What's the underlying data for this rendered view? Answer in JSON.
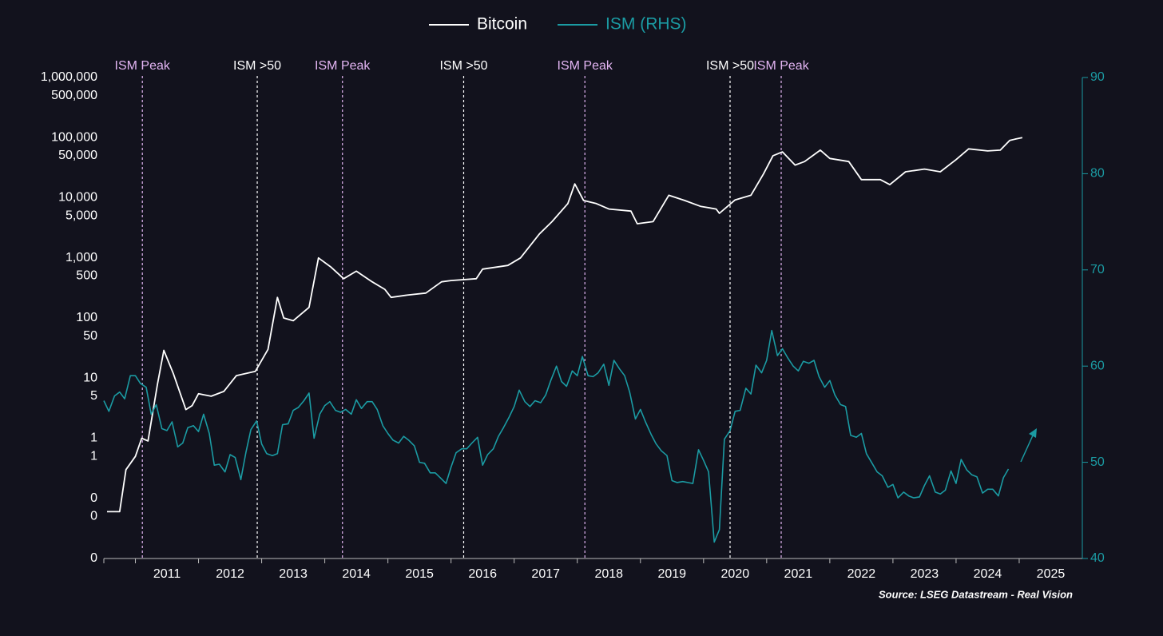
{
  "chart_data": {
    "type": "line",
    "source": "Source: LSEG Datastream - Real Vision",
    "xlim": [
      2010.5,
      2026
    ],
    "xticks": [
      2011,
      2012,
      2013,
      2014,
      2015,
      2016,
      2017,
      2018,
      2019,
      2020,
      2021,
      2022,
      2023,
      2024,
      2025
    ],
    "ylim": [
      0.01,
      1000000
    ],
    "ylog": true,
    "yticks": [
      {
        "value": 1000000,
        "label": "1,000,000"
      },
      {
        "value": 500000,
        "label": "500,000"
      },
      {
        "value": 100000,
        "label": "100,000"
      },
      {
        "value": 50000,
        "label": "50,000"
      },
      {
        "value": 10000,
        "label": "10,000"
      },
      {
        "value": 5000,
        "label": "5,000"
      },
      {
        "value": 1000,
        "label": "1,000"
      },
      500,
      100,
      50,
      10,
      5,
      1,
      {
        "value": 0.5,
        "label": "1"
      },
      {
        "value": 0.1,
        "label": "0"
      },
      {
        "value": 0.05,
        "label": "0"
      },
      {
        "value": 0.01,
        "label": "0"
      }
    ],
    "y2lim": [
      40,
      90
    ],
    "y2ticks": [
      40,
      50,
      60,
      70,
      80,
      90
    ],
    "grid": false,
    "legend": "top",
    "series": [
      {
        "name": "Bitcoin",
        "color": "#ffffff",
        "x": [
          2010.55,
          2010.75,
          2010.85,
          2011.0,
          2011.1,
          2011.2,
          2011.35,
          2011.45,
          2011.6,
          2011.8,
          2011.9,
          2012.0,
          2012.2,
          2012.4,
          2012.6,
          2012.9,
          2013.1,
          2013.25,
          2013.35,
          2013.5,
          2013.75,
          2013.9,
          2014.1,
          2014.3,
          2014.5,
          2014.75,
          2014.95,
          2015.05,
          2015.3,
          2015.6,
          2015.85,
          2016.0,
          2016.4,
          2016.5,
          2016.9,
          2017.1,
          2017.4,
          2017.6,
          2017.85,
          2017.96,
          2018.1,
          2018.3,
          2018.5,
          2018.85,
          2018.95,
          2019.2,
          2019.45,
          2019.7,
          2019.95,
          2020.2,
          2020.25,
          2020.5,
          2020.75,
          2020.95,
          2021.1,
          2021.25,
          2021.45,
          2021.6,
          2021.85,
          2022.0,
          2022.3,
          2022.5,
          2022.8,
          2022.95,
          2023.2,
          2023.5,
          2023.75,
          2024.0,
          2024.2,
          2024.5,
          2024.7,
          2024.85,
          2024.95,
          2025.05
        ],
        "values": [
          0.06,
          0.06,
          0.3,
          0.5,
          1.0,
          0.9,
          8,
          29,
          12,
          3,
          3.5,
          5.5,
          5,
          6,
          11,
          13,
          30,
          220,
          100,
          90,
          150,
          1000,
          700,
          450,
          600,
          400,
          300,
          220,
          240,
          260,
          400,
          420,
          450,
          650,
          750,
          1000,
          2500,
          4000,
          8000,
          17000,
          9000,
          8000,
          6500,
          6000,
          3700,
          4000,
          11000,
          9000,
          7200,
          6500,
          5500,
          9200,
          11000,
          25000,
          50000,
          58000,
          35000,
          40000,
          62000,
          45000,
          40000,
          20000,
          20000,
          16500,
          27000,
          30000,
          27000,
          43000,
          65000,
          60000,
          62000,
          90000,
          95000,
          100000
        ]
      },
      {
        "name": "ISM (RHS)",
        "color": "#1b9ba3",
        "axis": "y2",
        "x": [
          2010.5,
          2010.58,
          2010.67,
          2010.75,
          2010.83,
          2010.92,
          2011.0,
          2011.08,
          2011.17,
          2011.25,
          2011.33,
          2011.42,
          2011.5,
          2011.58,
          2011.67,
          2011.75,
          2011.83,
          2011.92,
          2012.0,
          2012.08,
          2012.17,
          2012.25,
          2012.33,
          2012.42,
          2012.5,
          2012.58,
          2012.67,
          2012.75,
          2012.83,
          2012.92,
          2013.0,
          2013.08,
          2013.17,
          2013.25,
          2013.33,
          2013.42,
          2013.5,
          2013.58,
          2013.67,
          2013.75,
          2013.83,
          2013.92,
          2014.0,
          2014.08,
          2014.17,
          2014.25,
          2014.33,
          2014.42,
          2014.5,
          2014.58,
          2014.67,
          2014.75,
          2014.83,
          2014.92,
          2015.0,
          2015.08,
          2015.17,
          2015.25,
          2015.33,
          2015.42,
          2015.5,
          2015.58,
          2015.67,
          2015.75,
          2015.83,
          2015.92,
          2016.0,
          2016.08,
          2016.17,
          2016.25,
          2016.33,
          2016.42,
          2016.5,
          2016.58,
          2016.67,
          2016.75,
          2016.83,
          2016.92,
          2017.0,
          2017.08,
          2017.17,
          2017.25,
          2017.33,
          2017.42,
          2017.5,
          2017.58,
          2017.67,
          2017.75,
          2017.83,
          2017.92,
          2018.0,
          2018.08,
          2018.17,
          2018.25,
          2018.33,
          2018.42,
          2018.5,
          2018.58,
          2018.67,
          2018.75,
          2018.83,
          2018.92,
          2019.0,
          2019.08,
          2019.17,
          2019.25,
          2019.33,
          2019.42,
          2019.5,
          2019.58,
          2019.67,
          2019.75,
          2019.83,
          2019.92,
          2020.0,
          2020.08,
          2020.17,
          2020.25,
          2020.33,
          2020.42,
          2020.5,
          2020.58,
          2020.67,
          2020.75,
          2020.83,
          2020.92,
          2021.0,
          2021.08,
          2021.17,
          2021.25,
          2021.33,
          2021.42,
          2021.5,
          2021.58,
          2021.67,
          2021.75,
          2021.83,
          2021.92,
          2022.0,
          2022.08,
          2022.17,
          2022.25,
          2022.33,
          2022.42,
          2022.5,
          2022.58,
          2022.67,
          2022.75,
          2022.83,
          2022.92,
          2023.0,
          2023.08,
          2023.17,
          2023.25,
          2023.33,
          2023.42,
          2023.5,
          2023.58,
          2023.67,
          2023.75,
          2023.83,
          2023.92,
          2024.0,
          2024.08,
          2024.17,
          2024.25,
          2024.33,
          2024.42,
          2024.5,
          2024.58,
          2024.67,
          2024.75,
          2024.83
        ],
        "values": [
          56.4,
          55.3,
          56.9,
          57.3,
          56.6,
          59.0,
          59.0,
          58.2,
          57.8,
          55.0,
          56.0,
          53.5,
          53.3,
          54.2,
          51.6,
          52.0,
          53.6,
          53.8,
          53.2,
          55.0,
          53.0,
          49.7,
          49.8,
          49.0,
          50.8,
          50.5,
          48.2,
          51.0,
          53.4,
          54.3,
          51.9,
          50.9,
          50.7,
          50.9,
          53.9,
          54.0,
          55.4,
          55.7,
          56.4,
          57.2,
          52.5,
          55.0,
          55.9,
          56.3,
          55.4,
          55.2,
          55.5,
          55.0,
          56.5,
          55.6,
          56.3,
          56.3,
          55.5,
          53.8,
          53.0,
          52.3,
          52.0,
          52.7,
          52.3,
          51.7,
          50.0,
          49.9,
          48.9,
          48.9,
          48.4,
          47.8,
          49.5,
          51.0,
          51.4,
          51.4,
          52.0,
          52.6,
          49.7,
          50.8,
          51.4,
          52.7,
          53.6,
          54.7,
          55.8,
          57.5,
          56.3,
          55.8,
          56.4,
          56.2,
          57.0,
          58.5,
          60.0,
          58.4,
          57.9,
          59.5,
          59.0,
          61.0,
          59.0,
          58.9,
          59.3,
          60.2,
          58.0,
          60.6,
          59.7,
          59.0,
          57.3,
          54.5,
          55.5,
          54.2,
          52.9,
          51.9,
          51.2,
          50.7,
          48.1,
          47.9,
          48.0,
          47.9,
          47.8,
          51.3,
          50.2,
          49.0,
          41.7,
          43.0,
          52.4,
          53.3,
          55.3,
          55.4,
          57.7,
          57.1,
          60.1,
          59.3,
          60.6,
          63.7,
          61.1,
          61.8,
          60.9,
          60.0,
          59.5,
          60.5,
          60.3,
          60.6,
          58.9,
          57.8,
          58.5,
          57.0,
          56.0,
          55.8,
          52.8,
          52.6,
          53.0,
          50.9,
          49.9,
          49.0,
          48.6,
          47.4,
          47.7,
          46.3,
          46.9,
          46.5,
          46.3,
          46.4,
          47.6,
          48.6,
          46.9,
          46.7,
          47.1,
          49.1,
          47.8,
          50.3,
          49.2,
          48.7,
          48.5,
          46.8,
          47.2,
          47.2,
          46.5,
          48.4,
          49.3
        ]
      }
    ],
    "annotations": [
      {
        "label": "ISM Peak",
        "x": 2011.11,
        "color": "#e3b5f3"
      },
      {
        "label": "ISM >50",
        "x": 2012.93,
        "color": "#ffffff"
      },
      {
        "label": "ISM Peak",
        "x": 2014.28,
        "color": "#e3b5f3"
      },
      {
        "label": "ISM >50",
        "x": 2016.2,
        "color": "#ffffff"
      },
      {
        "label": "ISM Peak",
        "x": 2018.12,
        "color": "#e3b5f3"
      },
      {
        "label": "ISM >50",
        "x": 2020.42,
        "color": "#ffffff"
      },
      {
        "label": "ISM Peak",
        "x": 2021.23,
        "color": "#e3b5f3"
      }
    ]
  }
}
